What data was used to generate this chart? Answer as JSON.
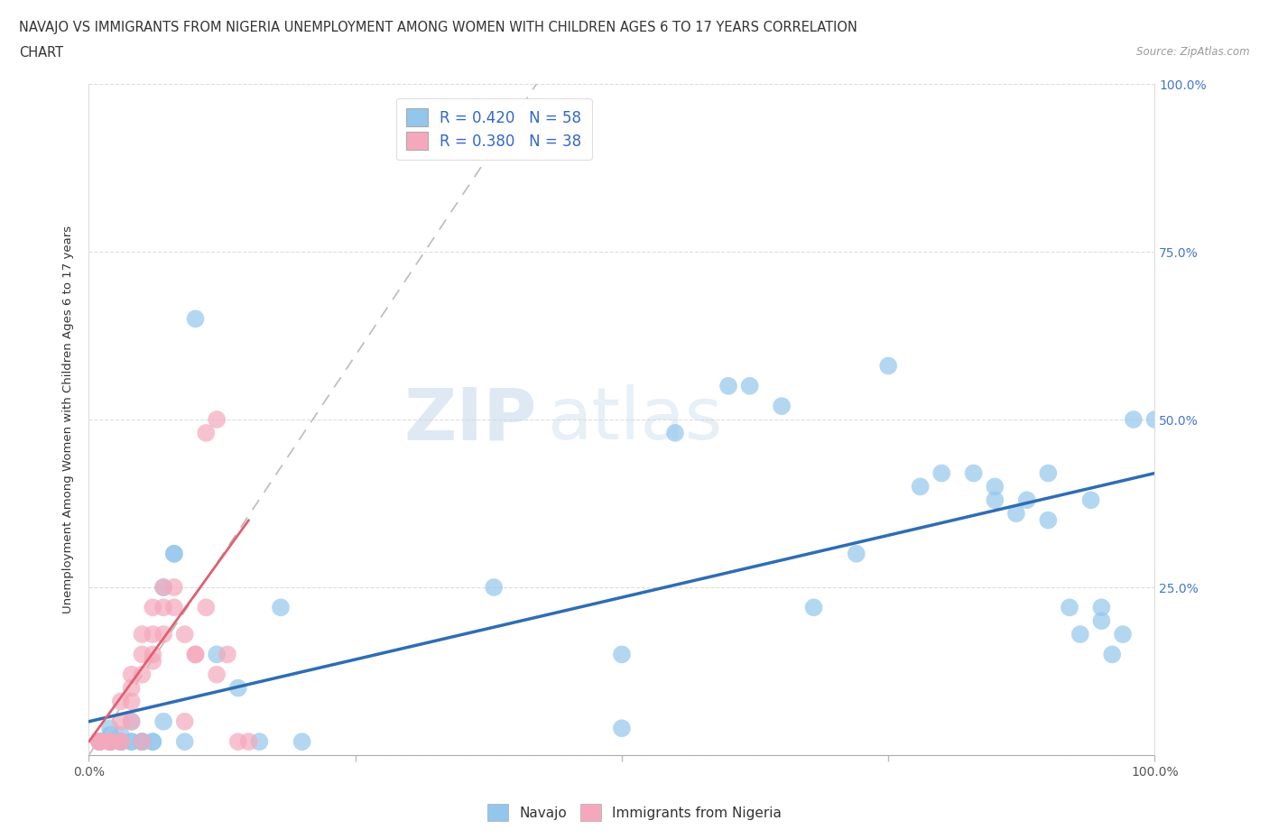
{
  "title_line1": "NAVAJO VS IMMIGRANTS FROM NIGERIA UNEMPLOYMENT AMONG WOMEN WITH CHILDREN AGES 6 TO 17 YEARS CORRELATION",
  "title_line2": "CHART",
  "source_text": "Source: ZipAtlas.com",
  "ylabel": "Unemployment Among Women with Children Ages 6 to 17 years",
  "xlim": [
    0.0,
    1.0
  ],
  "ylim": [
    0.0,
    1.0
  ],
  "xticks": [
    0.0,
    0.25,
    0.5,
    0.75,
    1.0
  ],
  "yticks": [
    0.0,
    0.25,
    0.5,
    0.75,
    1.0
  ],
  "xticklabels": [
    "0.0%",
    "",
    "",
    "",
    "100.0%"
  ],
  "yticklabels_right": [
    "",
    "25.0%",
    "50.0%",
    "75.0%",
    "100.0%"
  ],
  "navajo_color": "#93C6EC",
  "nigeria_color": "#F5A8BC",
  "navajo_R": 0.42,
  "navajo_N": 58,
  "nigeria_R": 0.38,
  "nigeria_N": 38,
  "navajo_line_color": "#2E6DB4",
  "nigeria_line_color": "#E06070",
  "watermark_zip": "ZIP",
  "watermark_atlas": "atlas",
  "background_color": "#FFFFFF",
  "navajo_x": [
    0.01,
    0.01,
    0.02,
    0.02,
    0.02,
    0.02,
    0.02,
    0.03,
    0.03,
    0.03,
    0.03,
    0.04,
    0.04,
    0.04,
    0.05,
    0.05,
    0.05,
    0.06,
    0.06,
    0.07,
    0.07,
    0.08,
    0.08,
    0.09,
    0.1,
    0.12,
    0.14,
    0.16,
    0.18,
    0.2,
    0.38,
    0.5,
    0.5,
    0.55,
    0.6,
    0.62,
    0.65,
    0.68,
    0.72,
    0.75,
    0.78,
    0.8,
    0.83,
    0.85,
    0.85,
    0.87,
    0.88,
    0.9,
    0.9,
    0.92,
    0.93,
    0.94,
    0.95,
    0.95,
    0.96,
    0.97,
    0.98,
    1.0
  ],
  "navajo_y": [
    0.02,
    0.02,
    0.03,
    0.02,
    0.04,
    0.02,
    0.02,
    0.03,
    0.02,
    0.02,
    0.02,
    0.02,
    0.05,
    0.02,
    0.02,
    0.02,
    0.02,
    0.02,
    0.02,
    0.05,
    0.25,
    0.3,
    0.3,
    0.02,
    0.65,
    0.15,
    0.1,
    0.02,
    0.22,
    0.02,
    0.25,
    0.15,
    0.04,
    0.48,
    0.55,
    0.55,
    0.52,
    0.22,
    0.3,
    0.58,
    0.4,
    0.42,
    0.42,
    0.38,
    0.4,
    0.36,
    0.38,
    0.42,
    0.35,
    0.22,
    0.18,
    0.38,
    0.22,
    0.2,
    0.15,
    0.18,
    0.5,
    0.5
  ],
  "nigeria_x": [
    0.01,
    0.01,
    0.01,
    0.02,
    0.02,
    0.02,
    0.03,
    0.03,
    0.03,
    0.03,
    0.04,
    0.04,
    0.04,
    0.04,
    0.05,
    0.05,
    0.05,
    0.05,
    0.06,
    0.06,
    0.06,
    0.06,
    0.07,
    0.07,
    0.07,
    0.08,
    0.08,
    0.09,
    0.09,
    0.1,
    0.1,
    0.11,
    0.11,
    0.12,
    0.12,
    0.13,
    0.14,
    0.15
  ],
  "nigeria_y": [
    0.02,
    0.02,
    0.02,
    0.02,
    0.02,
    0.02,
    0.02,
    0.02,
    0.05,
    0.08,
    0.05,
    0.08,
    0.1,
    0.12,
    0.12,
    0.15,
    0.18,
    0.02,
    0.14,
    0.15,
    0.18,
    0.22,
    0.18,
    0.22,
    0.25,
    0.22,
    0.25,
    0.05,
    0.18,
    0.15,
    0.15,
    0.22,
    0.48,
    0.12,
    0.5,
    0.15,
    0.02,
    0.02
  ],
  "navajo_line_x": [
    0.0,
    1.0
  ],
  "navajo_line_y": [
    0.05,
    0.42
  ],
  "nigeria_line_x": [
    0.0,
    0.15
  ],
  "nigeria_line_y": [
    0.02,
    0.35
  ],
  "diag_line_x": [
    0.0,
    0.42
  ],
  "diag_line_y": [
    0.0,
    1.0
  ]
}
